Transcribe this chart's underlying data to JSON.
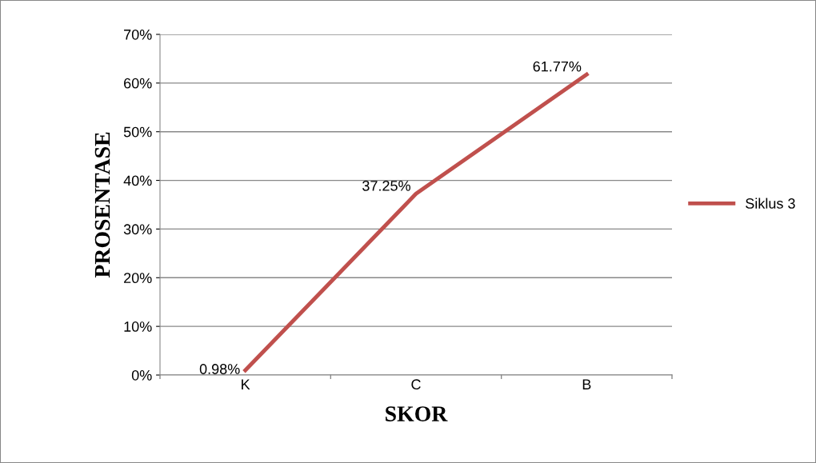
{
  "chart_data": {
    "type": "line",
    "xlabel": "SKOR",
    "ylabel": "PROSENTASE",
    "categories": [
      "K",
      "C",
      "B"
    ],
    "series": [
      {
        "name": "Siklus 3",
        "color": "#c0504d",
        "values": [
          0.98,
          37.25,
          61.77
        ],
        "value_labels": [
          "0.98%",
          "37.25%",
          "61.77%"
        ]
      }
    ],
    "ylim": [
      0,
      70
    ],
    "yticks": [
      {
        "value": 0,
        "label": "0%"
      },
      {
        "value": 10,
        "label": "10%"
      },
      {
        "value": 20,
        "label": "20%"
      },
      {
        "value": 30,
        "label": "30%"
      },
      {
        "value": 40,
        "label": "40%"
      },
      {
        "value": 50,
        "label": "50%"
      },
      {
        "value": 60,
        "label": "60%"
      },
      {
        "value": 70,
        "label": "70%"
      }
    ],
    "grid": "y",
    "legend": "right",
    "marker": "none",
    "line_style": "solid"
  }
}
